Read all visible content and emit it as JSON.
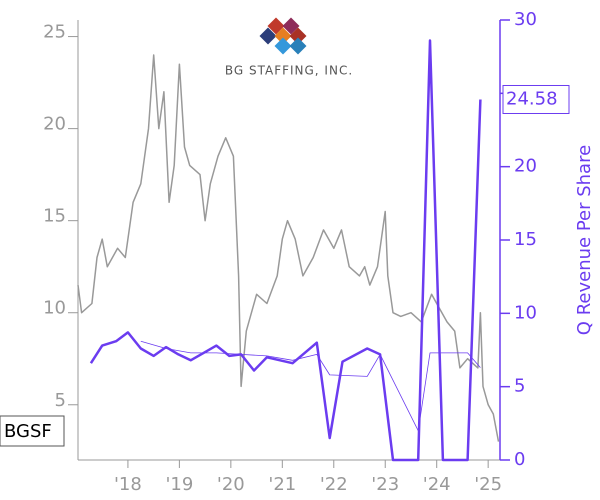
{
  "chart_data": {
    "type": "line",
    "logo_text": "BG STAFFING, INC.",
    "ticker_label": "BGSF",
    "y2_label": "Q Revenue Per Share",
    "xlim": [
      2017.03,
      2025.23
    ],
    "xticks": [
      {
        "value": 2018,
        "label": "'18"
      },
      {
        "value": 2019,
        "label": "'19"
      },
      {
        "value": 2020,
        "label": "'20"
      },
      {
        "value": 2021,
        "label": "'21"
      },
      {
        "value": 2022,
        "label": "'22"
      },
      {
        "value": 2023,
        "label": "'23"
      },
      {
        "value": 2024,
        "label": "'24"
      },
      {
        "value": 2025,
        "label": "'25"
      }
    ],
    "ylim": [
      2,
      25.9
    ],
    "yticks": [
      5,
      10,
      15,
      20,
      25
    ],
    "y2lim": [
      0,
      30
    ],
    "y2ticks": [
      0,
      5,
      10,
      15,
      20,
      25,
      30
    ],
    "series": [
      {
        "color": "#999999",
        "width": 1.5,
        "axis": "y",
        "x": [
          2017.03,
          2017.1,
          2017.3,
          2017.4,
          2017.5,
          2017.6,
          2017.8,
          2017.95,
          2018.1,
          2018.25,
          2018.4,
          2018.5,
          2018.6,
          2018.7,
          2018.8,
          2018.9,
          2019.0,
          2019.1,
          2019.2,
          2019.4,
          2019.5,
          2019.6,
          2019.75,
          2019.9,
          2020.05,
          2020.15,
          2020.2,
          2020.3,
          2020.5,
          2020.7,
          2020.9,
          2021.0,
          2021.1,
          2021.25,
          2021.4,
          2021.6,
          2021.8,
          2022.0,
          2022.15,
          2022.3,
          2022.5,
          2022.6,
          2022.7,
          2022.85,
          2023.0,
          2023.05,
          2023.15,
          2023.3,
          2023.5,
          2023.7,
          2023.9,
          2024.0,
          2024.2,
          2024.35,
          2024.45,
          2024.6,
          2024.8,
          2024.85,
          2024.9,
          2025.0,
          2025.1,
          2025.2
        ],
        "values": [
          11.5,
          10,
          10.5,
          13,
          14,
          12.5,
          13.5,
          13,
          16,
          17,
          20,
          24,
          20,
          22,
          16,
          18,
          23.5,
          19,
          18,
          17.5,
          15,
          17,
          18.5,
          19.5,
          18.5,
          12,
          6,
          9,
          11,
          10.5,
          12,
          14,
          15,
          14,
          12,
          13,
          14.5,
          13.5,
          14.5,
          12.5,
          12,
          12.5,
          11.5,
          12.5,
          15.5,
          12,
          10,
          9.8,
          10,
          9.5,
          11,
          10.5,
          9.5,
          9,
          7,
          7.5,
          7,
          10,
          6,
          5,
          4.5,
          3
        ]
      },
      {
        "color": "#6b3cf0",
        "width": 2.5,
        "axis": "y2",
        "x": [
          2017.28,
          2017.5,
          2017.77,
          2018.0,
          2018.25,
          2018.5,
          2018.74,
          2018.98,
          2019.22,
          2019.47,
          2019.72,
          2019.97,
          2020.2,
          2020.45,
          2020.7,
          2021.2,
          2021.67,
          2021.92,
          2022.17,
          2022.65,
          2022.9,
          2023.15,
          2023.64,
          2023.87,
          2024.12,
          2024.6,
          2024.85
        ],
        "values": [
          6.6,
          7.8,
          8.1,
          8.7,
          7.6,
          7.1,
          7.7,
          7.2,
          6.8,
          7.3,
          7.8,
          7.1,
          7.2,
          6.1,
          7.0,
          6.6,
          8.0,
          1.5,
          6.7,
          7.6,
          7.2,
          0,
          0,
          28.6,
          0,
          0,
          24.58
        ]
      },
      {
        "color": "#6b3cf0",
        "width": 0.8,
        "axis": "y2",
        "x": [
          2018.25,
          2018.74,
          2019.22,
          2019.72,
          2020.2,
          2020.7,
          2021.2,
          2021.67,
          2021.92,
          2022.65,
          2022.9,
          2023.64,
          2023.87,
          2024.6,
          2024.85
        ],
        "values": [
          8.1,
          7.6,
          7.3,
          7.3,
          7.2,
          7.1,
          6.8,
          7.2,
          5.8,
          5.7,
          7.2,
          2.0,
          7.3,
          7.3,
          6.3
        ]
      }
    ]
  }
}
